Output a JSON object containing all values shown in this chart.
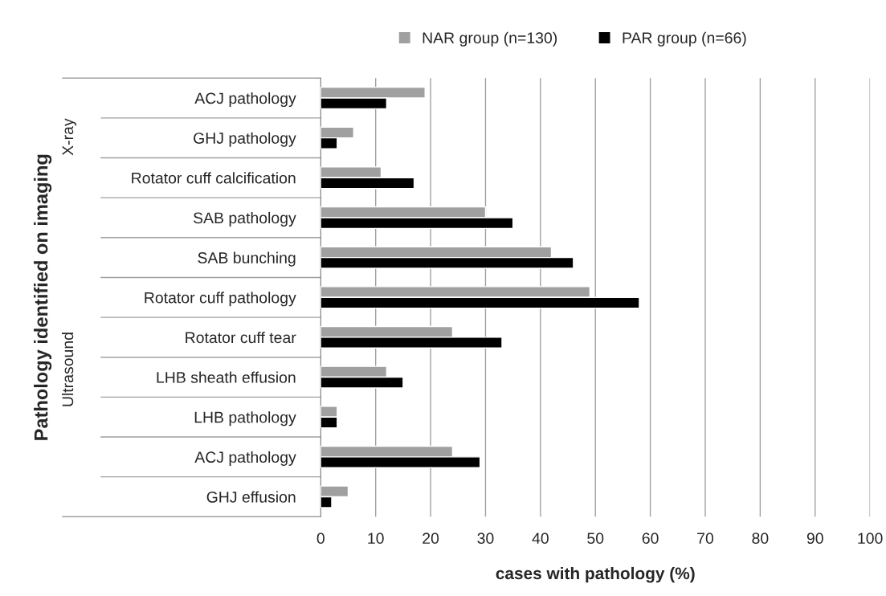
{
  "chart_data": {
    "type": "bar",
    "orientation": "horizontal",
    "categories": [
      "ACJ pathology",
      "GHJ pathology",
      "Rotator cuff calcification",
      "SAB pathology",
      "SAB bunching",
      "Rotator cuff pathology",
      "Rotator cuff tear",
      "LHB sheath effusion",
      "LHB pathology",
      "ACJ pathology",
      "GHJ effusion"
    ],
    "series": [
      {
        "name": "NAR group (n=130)",
        "color": "#a0a0a0",
        "values": [
          19,
          6,
          11,
          30,
          42,
          49,
          24,
          12,
          3,
          24,
          5
        ]
      },
      {
        "name": "PAR group (n=66)",
        "color": "#000000",
        "values": [
          12,
          3,
          17,
          35,
          46,
          58,
          33,
          15,
          3,
          29,
          2
        ]
      }
    ],
    "xlim": [
      0,
      100
    ],
    "xticks": [
      0,
      10,
      20,
      30,
      40,
      50,
      60,
      70,
      80,
      90,
      100
    ],
    "xlabel": "cases with pathology (%)",
    "ylabel": "Pathology identified on imaging",
    "annotations": [
      "X-ray",
      "Ultrasound"
    ],
    "grid": "x",
    "legend": "top"
  }
}
